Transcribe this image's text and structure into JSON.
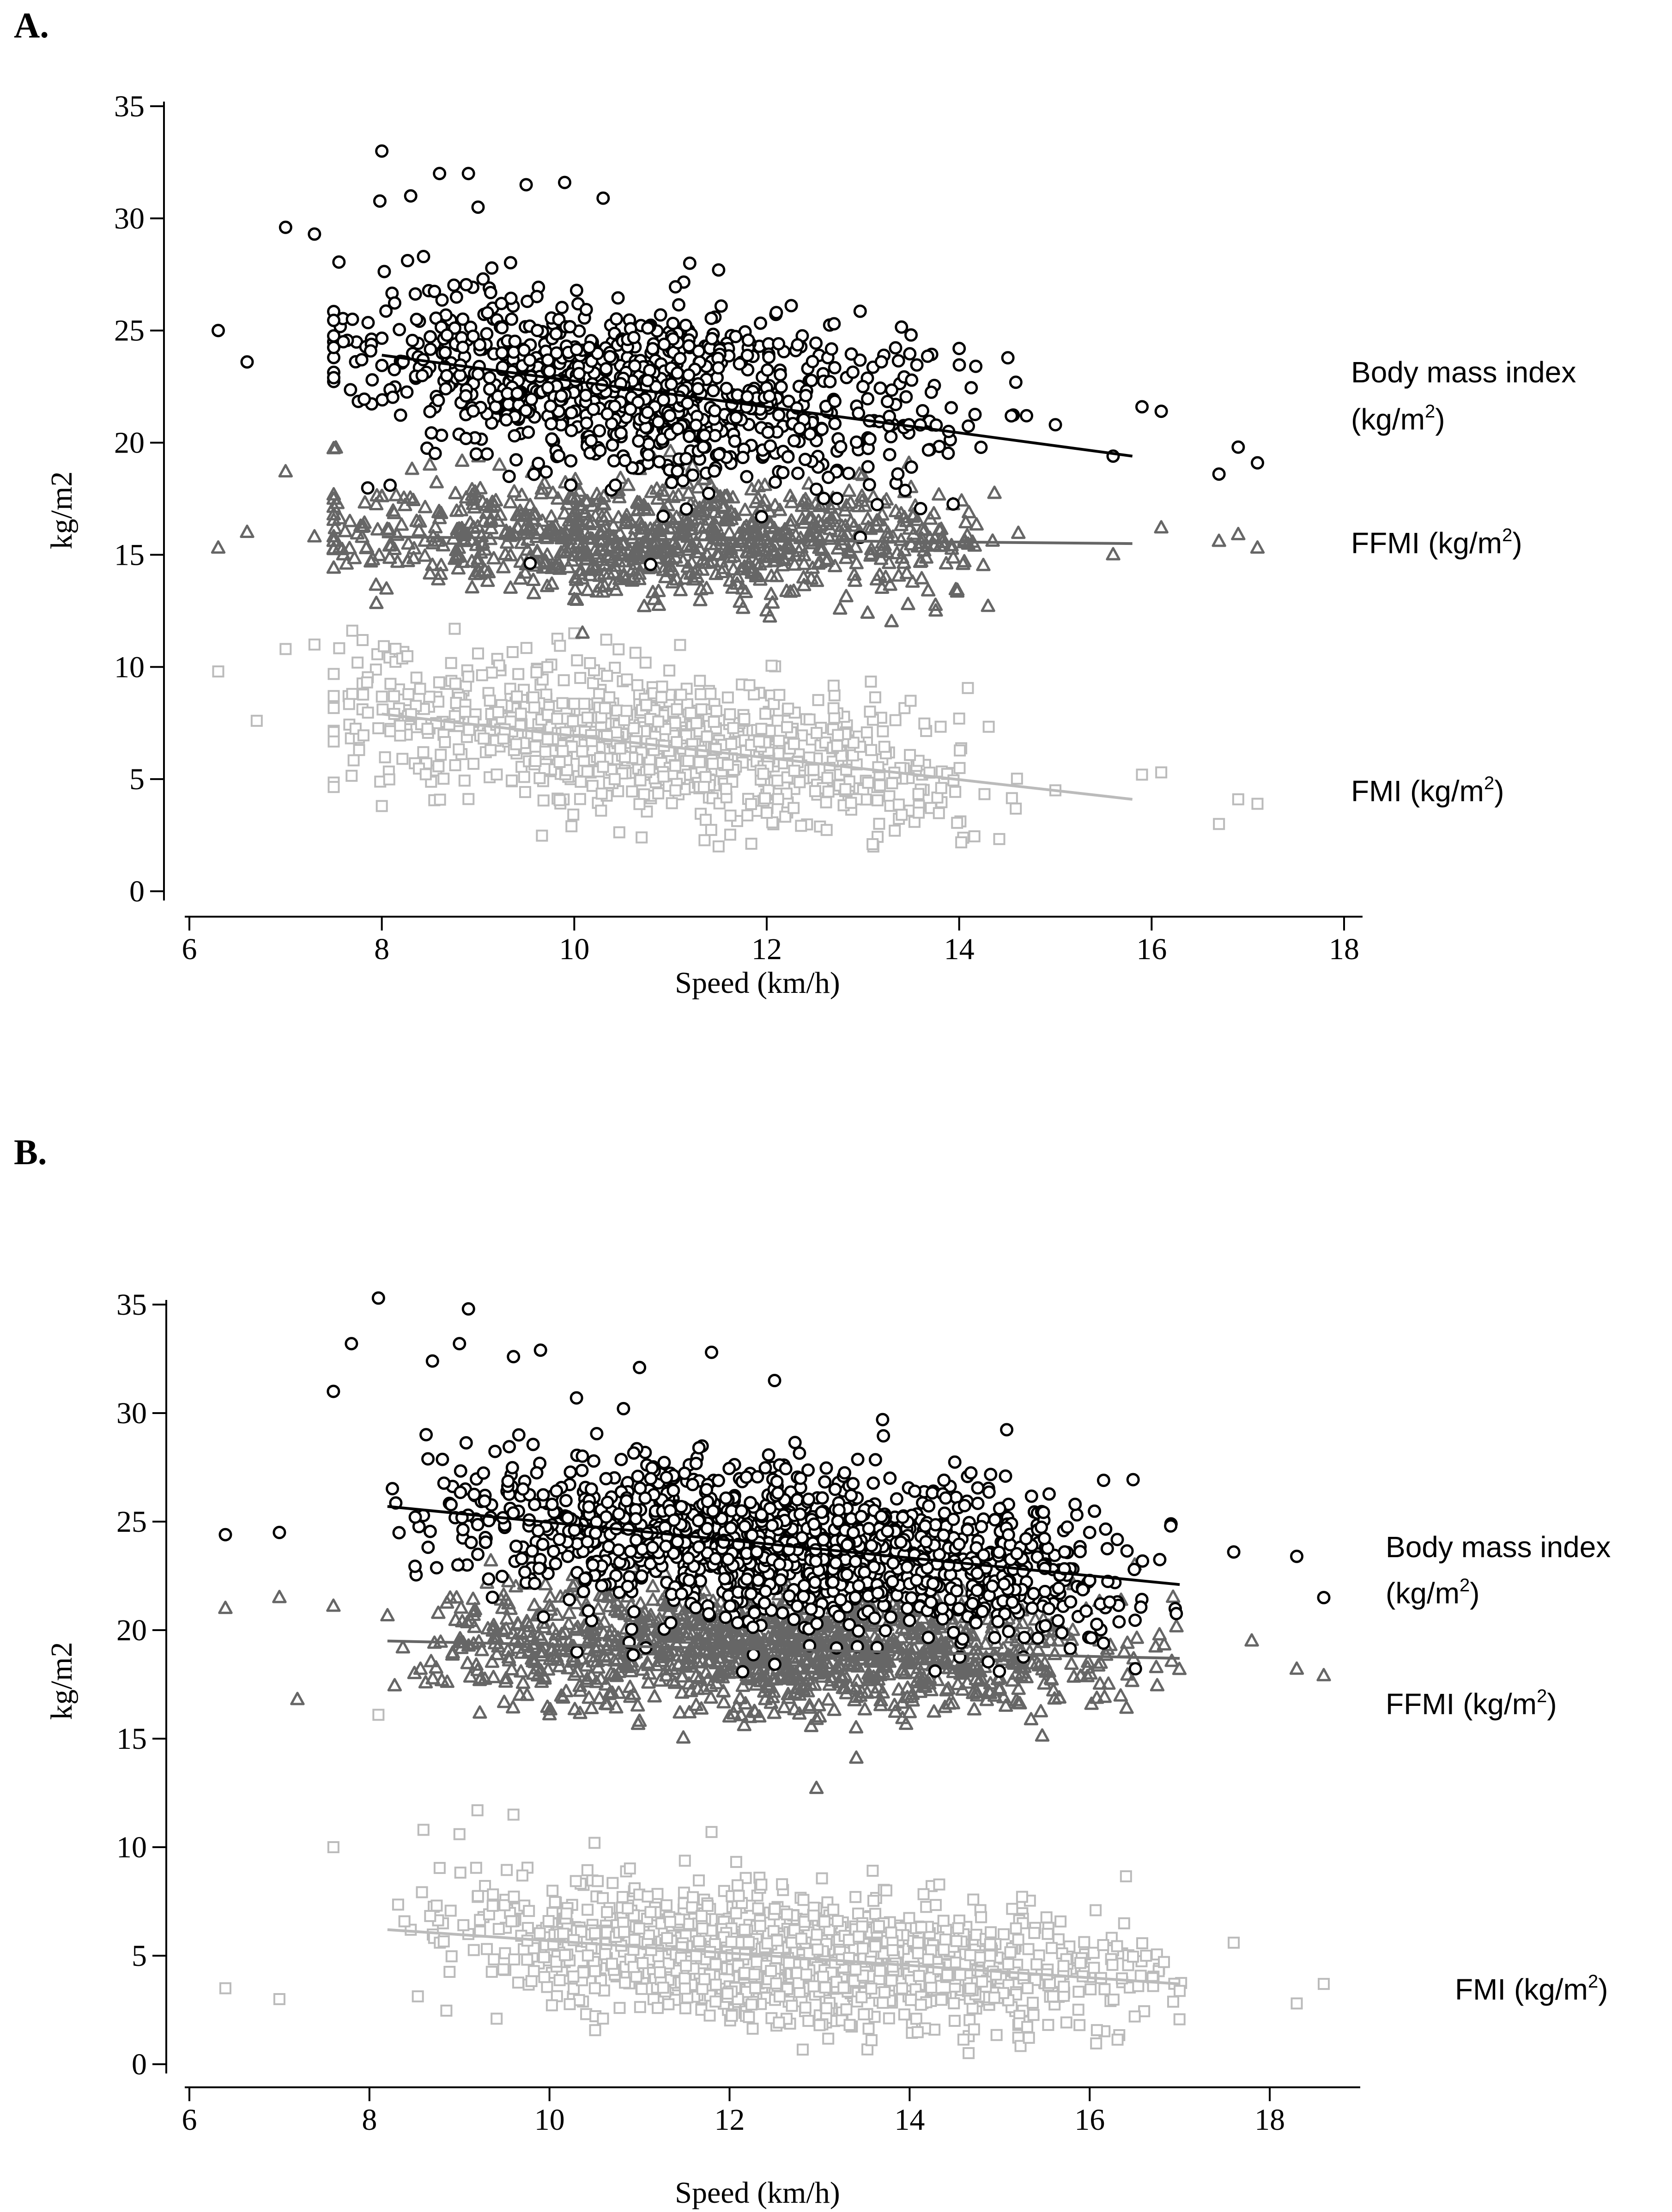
{
  "panels": [
    {
      "id": "A",
      "label": "A.",
      "colors": {
        "bmi": "#000000",
        "ffmi": "#666666",
        "fmi": "#bbbbbb"
      },
      "legend": {
        "bmi_line1": "Body mass index",
        "bmi_line2_pre": "(kg/m",
        "ffmi_pre": "FFMI (kg/m",
        "fmi_pre": "FMI (kg/m",
        "sup": "2",
        "close": ")"
      },
      "chart_data": {
        "type": "scatter",
        "xlabel": "Speed (km/h)",
        "ylabel": "kg/m2",
        "xlim": [
          6,
          18
        ],
        "ylim": [
          0,
          35
        ],
        "xticks": [
          6,
          8,
          10,
          12,
          14,
          16,
          18
        ],
        "yticks": [
          0,
          5,
          10,
          15,
          20,
          25,
          30,
          35
        ],
        "legend_placement": "right",
        "grid": false,
        "series": [
          {
            "name": "Body mass index (kg/m2)",
            "marker": "circle",
            "x_range": [
              6.3,
              17.1
            ],
            "trend": {
              "x": [
                8.0,
                15.8
              ],
              "y": [
                23.9,
                19.4
              ]
            },
            "spread": 2.0,
            "sample_points": [
              [
                6.3,
                25.0
              ],
              [
                6.6,
                23.6
              ],
              [
                7.0,
                29.6
              ],
              [
                7.3,
                29.3
              ],
              [
                7.6,
                24.5
              ],
              [
                7.9,
                22.8
              ],
              [
                8.0,
                33.0
              ],
              [
                8.3,
                31.0
              ],
              [
                8.6,
                32.0
              ],
              [
                8.9,
                32.0
              ],
              [
                9.0,
                30.5
              ],
              [
                9.5,
                31.5
              ],
              [
                9.9,
                31.6
              ],
              [
                10.3,
                30.9
              ],
              [
                11.2,
                28.0
              ],
              [
                11.5,
                27.7
              ],
              [
                12.1,
                25.8
              ],
              [
                12.7,
                25.3
              ],
              [
                13.0,
                22.5
              ],
              [
                13.5,
                24.8
              ],
              [
                14.0,
                24.2
              ],
              [
                14.7,
                21.2
              ],
              [
                15.0,
                20.8
              ],
              [
                15.6,
                19.4
              ],
              [
                15.9,
                21.6
              ],
              [
                16.1,
                21.4
              ],
              [
                16.7,
                18.6
              ],
              [
                16.9,
                19.8
              ],
              [
                17.1,
                19.1
              ]
            ]
          },
          {
            "name": "FFMI (kg/m2)",
            "marker": "triangle",
            "x_range": [
              6.3,
              17.1
            ],
            "trend": {
              "x": [
                8.0,
                15.8
              ],
              "y": [
                15.8,
                15.5
              ]
            },
            "spread": 1.3,
            "sample_points": [
              [
                6.3,
                15.3
              ],
              [
                6.6,
                16.0
              ],
              [
                7.0,
                18.7
              ],
              [
                7.3,
                15.8
              ],
              [
                7.6,
                15.0
              ],
              [
                8.0,
                17.6
              ],
              [
                8.5,
                19.0
              ],
              [
                9.0,
                14.8
              ],
              [
                10.0,
                13.0
              ],
              [
                11.0,
                19.6
              ],
              [
                12.0,
                12.5
              ],
              [
                13.5,
                18.0
              ],
              [
                14.3,
                12.7
              ],
              [
                15.6,
                15.0
              ],
              [
                16.1,
                16.2
              ],
              [
                16.7,
                15.6
              ],
              [
                16.9,
                15.9
              ],
              [
                17.1,
                15.3
              ]
            ]
          },
          {
            "name": "FMI (kg/m2)",
            "marker": "square",
            "x_range": [
              6.3,
              17.1
            ],
            "trend": {
              "x": [
                8.0,
                15.8
              ],
              "y": [
                7.9,
                4.1
              ]
            },
            "spread": 1.6,
            "sample_points": [
              [
                6.3,
                9.8
              ],
              [
                6.7,
                7.6
              ],
              [
                7.0,
                10.8
              ],
              [
                7.3,
                11.0
              ],
              [
                7.8,
                11.2
              ],
              [
                8.0,
                3.8
              ],
              [
                9.0,
                10.6
              ],
              [
                10.0,
                11.5
              ],
              [
                10.7,
                2.4
              ],
              [
                11.5,
                2.0
              ],
              [
                12.0,
                3.5
              ],
              [
                13.1,
                2.1
              ],
              [
                14.0,
                7.7
              ],
              [
                15.0,
                4.5
              ],
              [
                15.9,
                5.2
              ],
              [
                16.1,
                5.3
              ],
              [
                16.7,
                3.0
              ],
              [
                16.9,
                4.1
              ],
              [
                17.1,
                3.9
              ]
            ]
          }
        ]
      }
    },
    {
      "id": "B",
      "label": "B.",
      "colors": {
        "bmi": "#000000",
        "ffmi": "#666666",
        "fmi": "#bbbbbb"
      },
      "legend": {
        "bmi_line1": "Body mass index",
        "bmi_line2_pre": "(kg/m",
        "ffmi_pre": "FFMI (kg/m",
        "fmi_pre": "FMI (kg/m",
        "sup": "2",
        "close": ")"
      },
      "chart_data": {
        "type": "scatter",
        "xlabel": "Speed (km/h)",
        "ylabel": "kg/m2",
        "xlim": [
          6,
          18.8
        ],
        "ylim": [
          0,
          35
        ],
        "xticks": [
          6,
          8,
          10,
          12,
          14,
          16,
          18
        ],
        "yticks": [
          0,
          5,
          10,
          15,
          20,
          25,
          30,
          35
        ],
        "legend_placement": "right",
        "grid": false,
        "series": [
          {
            "name": "Body mass index (kg/m2)",
            "marker": "circle",
            "x_range": [
              6.4,
              18.6
            ],
            "trend": {
              "x": [
                8.2,
                17.0
              ],
              "y": [
                25.7,
                22.1
              ]
            },
            "spread": 1.8,
            "sample_points": [
              [
                6.4,
                24.4
              ],
              [
                7.0,
                24.5
              ],
              [
                7.6,
                31.0
              ],
              [
                7.8,
                33.2
              ],
              [
                8.1,
                35.3
              ],
              [
                8.7,
                32.4
              ],
              [
                9.0,
                33.2
              ],
              [
                9.1,
                34.8
              ],
              [
                9.6,
                32.6
              ],
              [
                9.9,
                32.9
              ],
              [
                10.3,
                30.7
              ],
              [
                11.0,
                32.1
              ],
              [
                11.8,
                32.8
              ],
              [
                12.5,
                31.5
              ],
              [
                13.7,
                29.7
              ],
              [
                15.0,
                25.6
              ],
              [
                16.0,
                24.5
              ],
              [
                16.9,
                24.8
              ],
              [
                17.6,
                23.6
              ],
              [
                18.3,
                23.4
              ],
              [
                18.6,
                21.5
              ]
            ]
          },
          {
            "name": "FFMI (kg/m2)",
            "marker": "triangle",
            "x_range": [
              6.4,
              18.6
            ],
            "trend": {
              "x": [
                8.2,
                17.0
              ],
              "y": [
                19.5,
                18.7
              ]
            },
            "spread": 1.4,
            "sample_points": [
              [
                6.4,
                21.0
              ],
              [
                7.0,
                21.5
              ],
              [
                7.2,
                16.8
              ],
              [
                7.6,
                21.1
              ],
              [
                8.5,
                18.0
              ],
              [
                9.0,
                23.0
              ],
              [
                10.0,
                16.1
              ],
              [
                11.0,
                15.8
              ],
              [
                12.0,
                16.0
              ],
              [
                13.0,
                16.0
              ],
              [
                14.0,
                16.2
              ],
              [
                15.0,
                17.3
              ],
              [
                16.5,
                23.0
              ],
              [
                17.8,
                19.5
              ],
              [
                18.3,
                18.2
              ],
              [
                18.6,
                17.9
              ]
            ]
          },
          {
            "name": "FMI (kg/m2)",
            "marker": "square",
            "x_range": [
              6.4,
              18.6
            ],
            "trend": {
              "x": [
                8.2,
                17.0
              ],
              "y": [
                6.2,
                3.7
              ]
            },
            "spread": 1.5,
            "sample_points": [
              [
                6.4,
                3.5
              ],
              [
                7.0,
                3.0
              ],
              [
                7.6,
                10.0
              ],
              [
                8.1,
                16.1
              ],
              [
                8.6,
                10.8
              ],
              [
                9.0,
                10.6
              ],
              [
                9.2,
                11.7
              ],
              [
                9.6,
                11.5
              ],
              [
                10.5,
                10.2
              ],
              [
                11.8,
                10.7
              ],
              [
                13.0,
                1.8
              ],
              [
                14.5,
                2.0
              ],
              [
                16.5,
                2.2
              ],
              [
                17.6,
                5.6
              ],
              [
                18.3,
                2.8
              ],
              [
                18.6,
                3.7
              ]
            ]
          }
        ]
      }
    }
  ]
}
